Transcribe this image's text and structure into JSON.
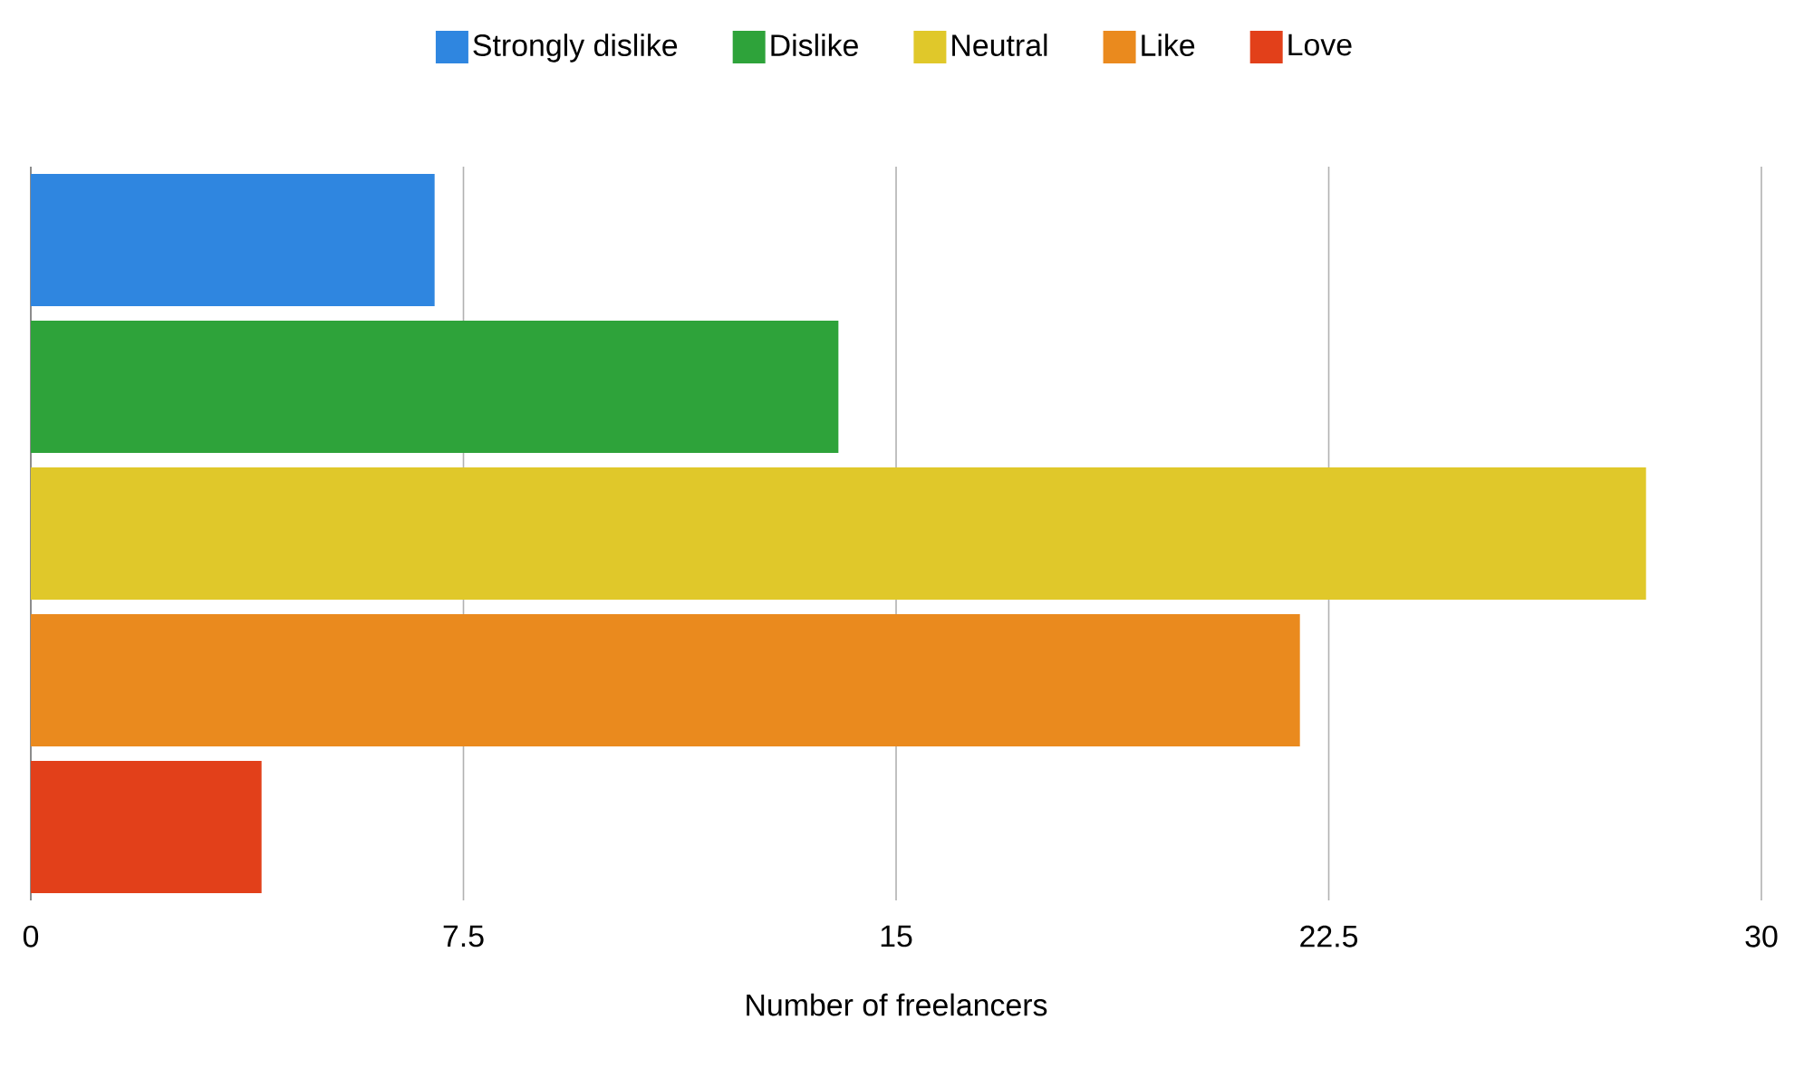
{
  "chart_data": {
    "type": "bar",
    "orientation": "horizontal",
    "xlabel": "Number of freelancers",
    "categories": [
      null
    ],
    "series": [
      {
        "name": "Strongly dislike",
        "color": "#2f86e0",
        "values": [
          7
        ]
      },
      {
        "name": "Dislike",
        "color": "#2ea33a",
        "values": [
          14
        ]
      },
      {
        "name": "Neutral",
        "color": "#e0c82a",
        "values": [
          28
        ]
      },
      {
        "name": "Like",
        "color": "#ea8a1e",
        "values": [
          22
        ]
      },
      {
        "name": "Love",
        "color": "#e2401a",
        "values": [
          4
        ]
      }
    ],
    "xlim": [
      0,
      30
    ],
    "xticks": [
      0,
      7.5,
      15,
      22.5,
      30
    ],
    "grid": "x",
    "legend": "top",
    "tick_labels": "x"
  }
}
